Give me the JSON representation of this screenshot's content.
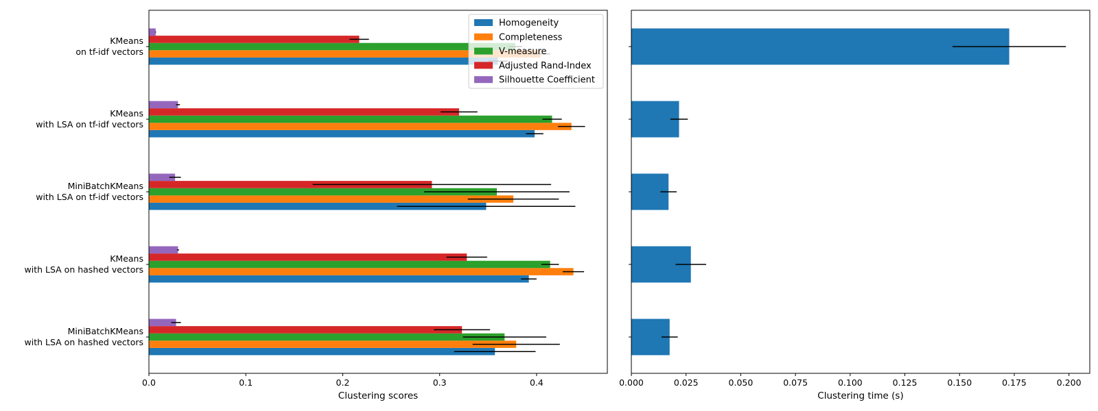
{
  "chart_data": [
    {
      "type": "bar",
      "orientation": "horizontal",
      "categories": [
        "KMeans\non tf-idf vectors",
        "KMeans\nwith LSA on tf-idf vectors",
        "MiniBatchKMeans\nwith LSA on tf-idf vectors",
        "KMeans\nwith LSA on hashed vectors",
        "MiniBatchKMeans\nwith LSA on hashed vectors"
      ],
      "series": [
        {
          "name": "Homogeneity",
          "color": "#1f77b4",
          "values": [
            0.36,
            0.398,
            0.348,
            0.392,
            0.357
          ],
          "errors": [
            0.01,
            0.009,
            0.092,
            0.008,
            0.042
          ]
        },
        {
          "name": "Completeness",
          "color": "#ff7f0e",
          "values": [
            0.404,
            0.436,
            0.376,
            0.438,
            0.379
          ],
          "errors": [
            0.01,
            0.014,
            0.047,
            0.011,
            0.045
          ]
        },
        {
          "name": "V-measure",
          "color": "#2ca02c",
          "values": [
            0.378,
            0.416,
            0.359,
            0.414,
            0.367
          ],
          "errors": [
            0.007,
            0.01,
            0.075,
            0.009,
            0.043
          ]
        },
        {
          "name": "Adjusted Rand-Index",
          "color": "#d62728",
          "values": [
            0.217,
            0.32,
            0.292,
            0.328,
            0.323
          ],
          "errors": [
            0.01,
            0.019,
            0.123,
            0.021,
            0.029
          ]
        },
        {
          "name": "Silhouette Coefficient",
          "color": "#9467bd",
          "values": [
            0.007,
            0.03,
            0.027,
            0.03,
            0.028
          ],
          "errors": [
            0.0004,
            0.002,
            0.006,
            0.001,
            0.005
          ]
        }
      ],
      "xlabel": "Clustering scores",
      "xlim": [
        0,
        0.473
      ],
      "xticks": [
        "0.0",
        "0.1",
        "0.2",
        "0.3",
        "0.4"
      ],
      "legend": "top-right",
      "grid": false
    },
    {
      "type": "bar",
      "orientation": "horizontal",
      "categories": [
        "KMeans\non tf-idf vectors",
        "KMeans\nwith LSA on tf-idf vectors",
        "MiniBatchKMeans\nwith LSA on tf-idf vectors",
        "KMeans\nwith LSA on hashed vectors",
        "MiniBatchKMeans\nwith LSA on hashed vectors"
      ],
      "series": [
        {
          "color": "#1f77b4",
          "values": [
            0.1727,
            0.0218,
            0.017,
            0.0272,
            0.0175
          ],
          "errors": [
            0.0259,
            0.004,
            0.0037,
            0.007,
            0.0037
          ]
        }
      ],
      "xlabel": "Clustering time (s)",
      "xlim": [
        0,
        0.2095
      ],
      "xticks": [
        "0.000",
        "0.025",
        "0.050",
        "0.075",
        "0.100",
        "0.125",
        "0.150",
        "0.175",
        "0.200"
      ],
      "show_category_labels": false,
      "grid": false
    }
  ]
}
